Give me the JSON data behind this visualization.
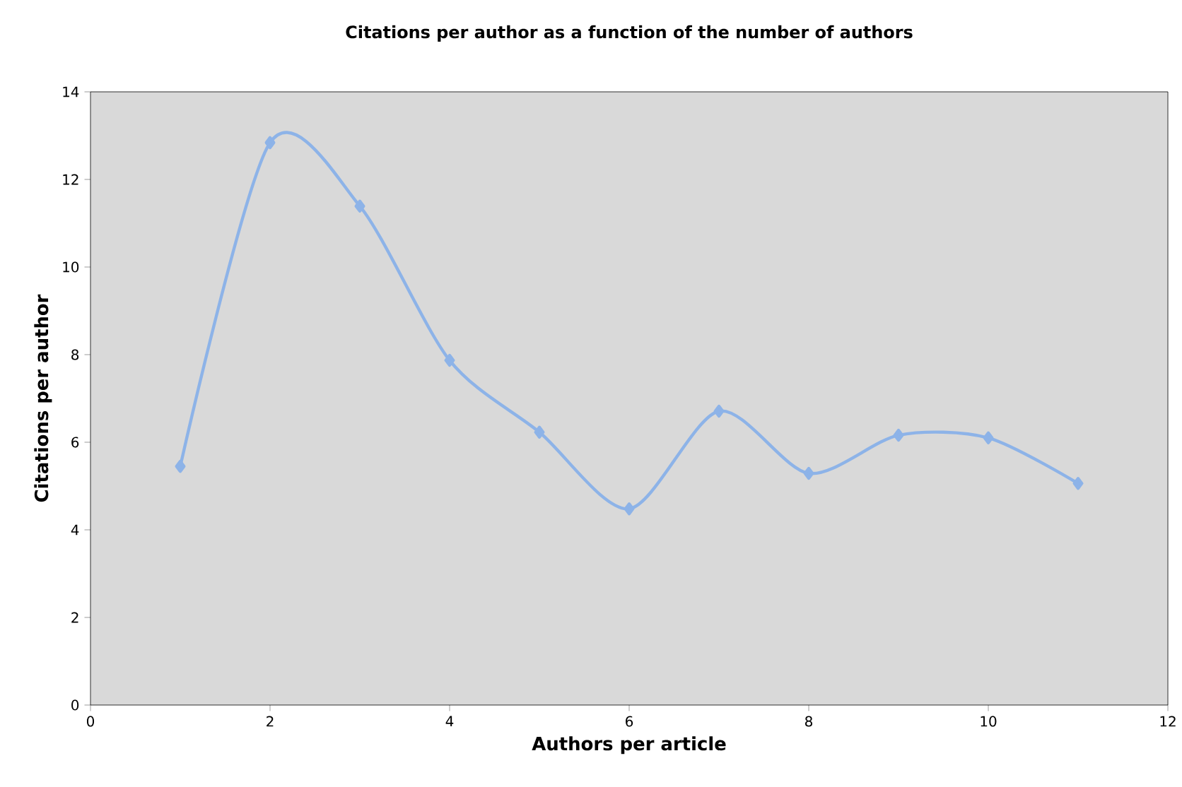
{
  "chart_data": {
    "type": "line",
    "title": "Citations per author as a function of the number of authors",
    "xlabel": "Authors per article",
    "ylabel": "Citations per author",
    "x": [
      1,
      2,
      3,
      4,
      5,
      6,
      7,
      8,
      9,
      10,
      11
    ],
    "series": [
      {
        "color": "#8db3e8",
        "values": [
          5.45,
          12.84,
          11.39,
          7.87,
          6.23,
          4.48,
          6.71,
          5.29,
          6.16,
          6.1,
          5.06
        ]
      }
    ],
    "xlim": [
      0,
      12
    ],
    "ylim": [
      0,
      14
    ],
    "xticks": [
      0,
      2,
      4,
      6,
      8,
      10,
      12
    ],
    "yticks": [
      0,
      2,
      4,
      6,
      8,
      10,
      12,
      14
    ],
    "marker": "diamond",
    "line_style": "solid"
  }
}
